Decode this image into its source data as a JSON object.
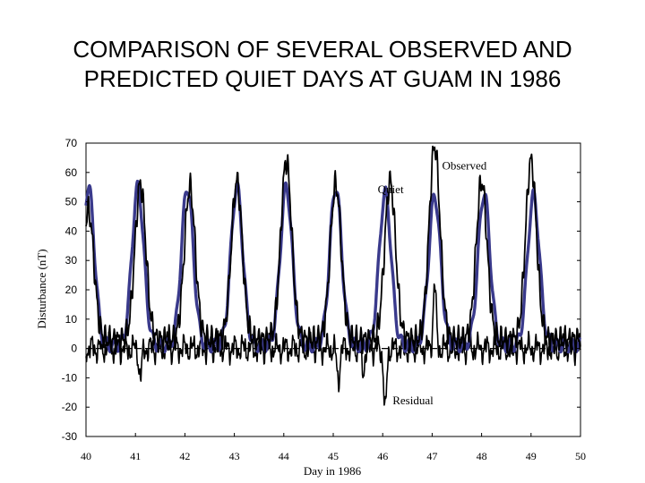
{
  "chart_data": {
    "type": "line",
    "title_lines": [
      "COMPARISON OF SEVERAL OBSERVED AND",
      "PREDICTED QUIET DAYS AT GUAM IN 1986"
    ],
    "xlabel": "Day in 1986",
    "ylabel": "Disturbance (nT)",
    "xlim": [
      40,
      50
    ],
    "ylim": [
      -30,
      70
    ],
    "x_ticks": [
      40,
      41,
      42,
      43,
      44,
      45,
      46,
      47,
      48,
      49,
      50
    ],
    "x_tick_labels": [
      "40",
      "41",
      "42",
      "43",
      "44",
      "45",
      "46",
      "47",
      "48",
      "49",
      "50"
    ],
    "y_ticks": [
      70,
      60,
      50,
      40,
      30,
      20,
      10,
      0,
      -10,
      -20,
      -30
    ],
    "y_tick_labels": [
      "70",
      "60",
      "50",
      "40",
      "30",
      "20",
      "10",
      "0",
      "-10",
      "-20",
      "-30"
    ],
    "zero_line": true,
    "series": [
      {
        "name": "Quiet",
        "color": "#3a3a8c",
        "peak_x": [
          40.05,
          41.05,
          42.05,
          43.05,
          44.05,
          45.05,
          46.05,
          47.05,
          48.05,
          49.05
        ],
        "peak_y": [
          55,
          55,
          55,
          55,
          55,
          55,
          53,
          52,
          53,
          52
        ],
        "baseline": 1
      },
      {
        "name": "Observed",
        "color": "#000000",
        "peak_x": [
          40.05,
          41.1,
          42.1,
          43.05,
          44.05,
          45.05,
          46.15,
          47.05,
          48.0,
          49.0
        ],
        "peak_y": [
          47,
          56,
          55,
          57,
          64,
          56,
          57,
          69,
          57,
          64
        ],
        "baseline": 3
      },
      {
        "name": "Residual",
        "color": "#000000",
        "events_x": [
          41.1,
          45.1,
          45.6,
          46.05,
          47.05
        ],
        "events_y": [
          -10,
          -11,
          -8,
          -22,
          22
        ]
      }
    ],
    "annotations": [
      {
        "text": "Observed",
        "x": 47.2,
        "y": 61
      },
      {
        "text": "Quiet",
        "x": 45.9,
        "y": 53
      },
      {
        "text": "Residual",
        "x": 46.2,
        "y": -19
      }
    ]
  }
}
